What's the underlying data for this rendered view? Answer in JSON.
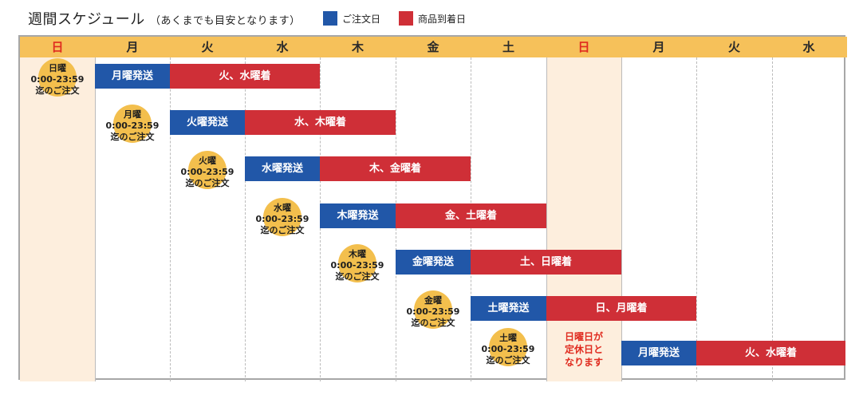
{
  "header": {
    "title": "週間スケジュール",
    "note": "（あくまでも目安となります）",
    "legend": [
      {
        "label": "ご注文日",
        "color": "#2157a8"
      },
      {
        "label": "商品到着日",
        "color": "#cf2f37"
      }
    ]
  },
  "days": [
    "日",
    "月",
    "火",
    "水",
    "木",
    "金",
    "土",
    "日",
    "月",
    "火",
    "水"
  ],
  "colors": {
    "header_bg": "#f6c15a",
    "sunday_text": "#e02b1f",
    "sunday_bg": "#fdeedd",
    "ship_bar": "#2157a8",
    "arrive_bar": "#cf2f37",
    "order_circle": "#f3bf4d"
  },
  "orders": [
    {
      "day": "日曜",
      "time": "0:00-23:59",
      "deadline": "迄のご注文"
    },
    {
      "day": "月曜",
      "time": "0:00-23:59",
      "deadline": "迄のご注文"
    },
    {
      "day": "火曜",
      "time": "0:00-23:59",
      "deadline": "迄のご注文"
    },
    {
      "day": "水曜",
      "time": "0:00-23:59",
      "deadline": "迄のご注文"
    },
    {
      "day": "木曜",
      "time": "0:00-23:59",
      "deadline": "迄のご注文"
    },
    {
      "day": "金曜",
      "time": "0:00-23:59",
      "deadline": "迄のご注文"
    },
    {
      "day": "土曜",
      "time": "0:00-23:59",
      "deadline": "迄のご注文"
    }
  ],
  "ship_bars": [
    "月曜発送",
    "火曜発送",
    "水曜発送",
    "木曜発送",
    "金曜発送",
    "土曜発送",
    "月曜発送"
  ],
  "arrive_bars": [
    "火、水曜着",
    "水、木曜着",
    "木、金曜着",
    "金、土曜着",
    "土、日曜着",
    "日、月曜着",
    "火、水曜着"
  ],
  "closed_note": [
    "日曜日が",
    "定休日と",
    "なります"
  ]
}
